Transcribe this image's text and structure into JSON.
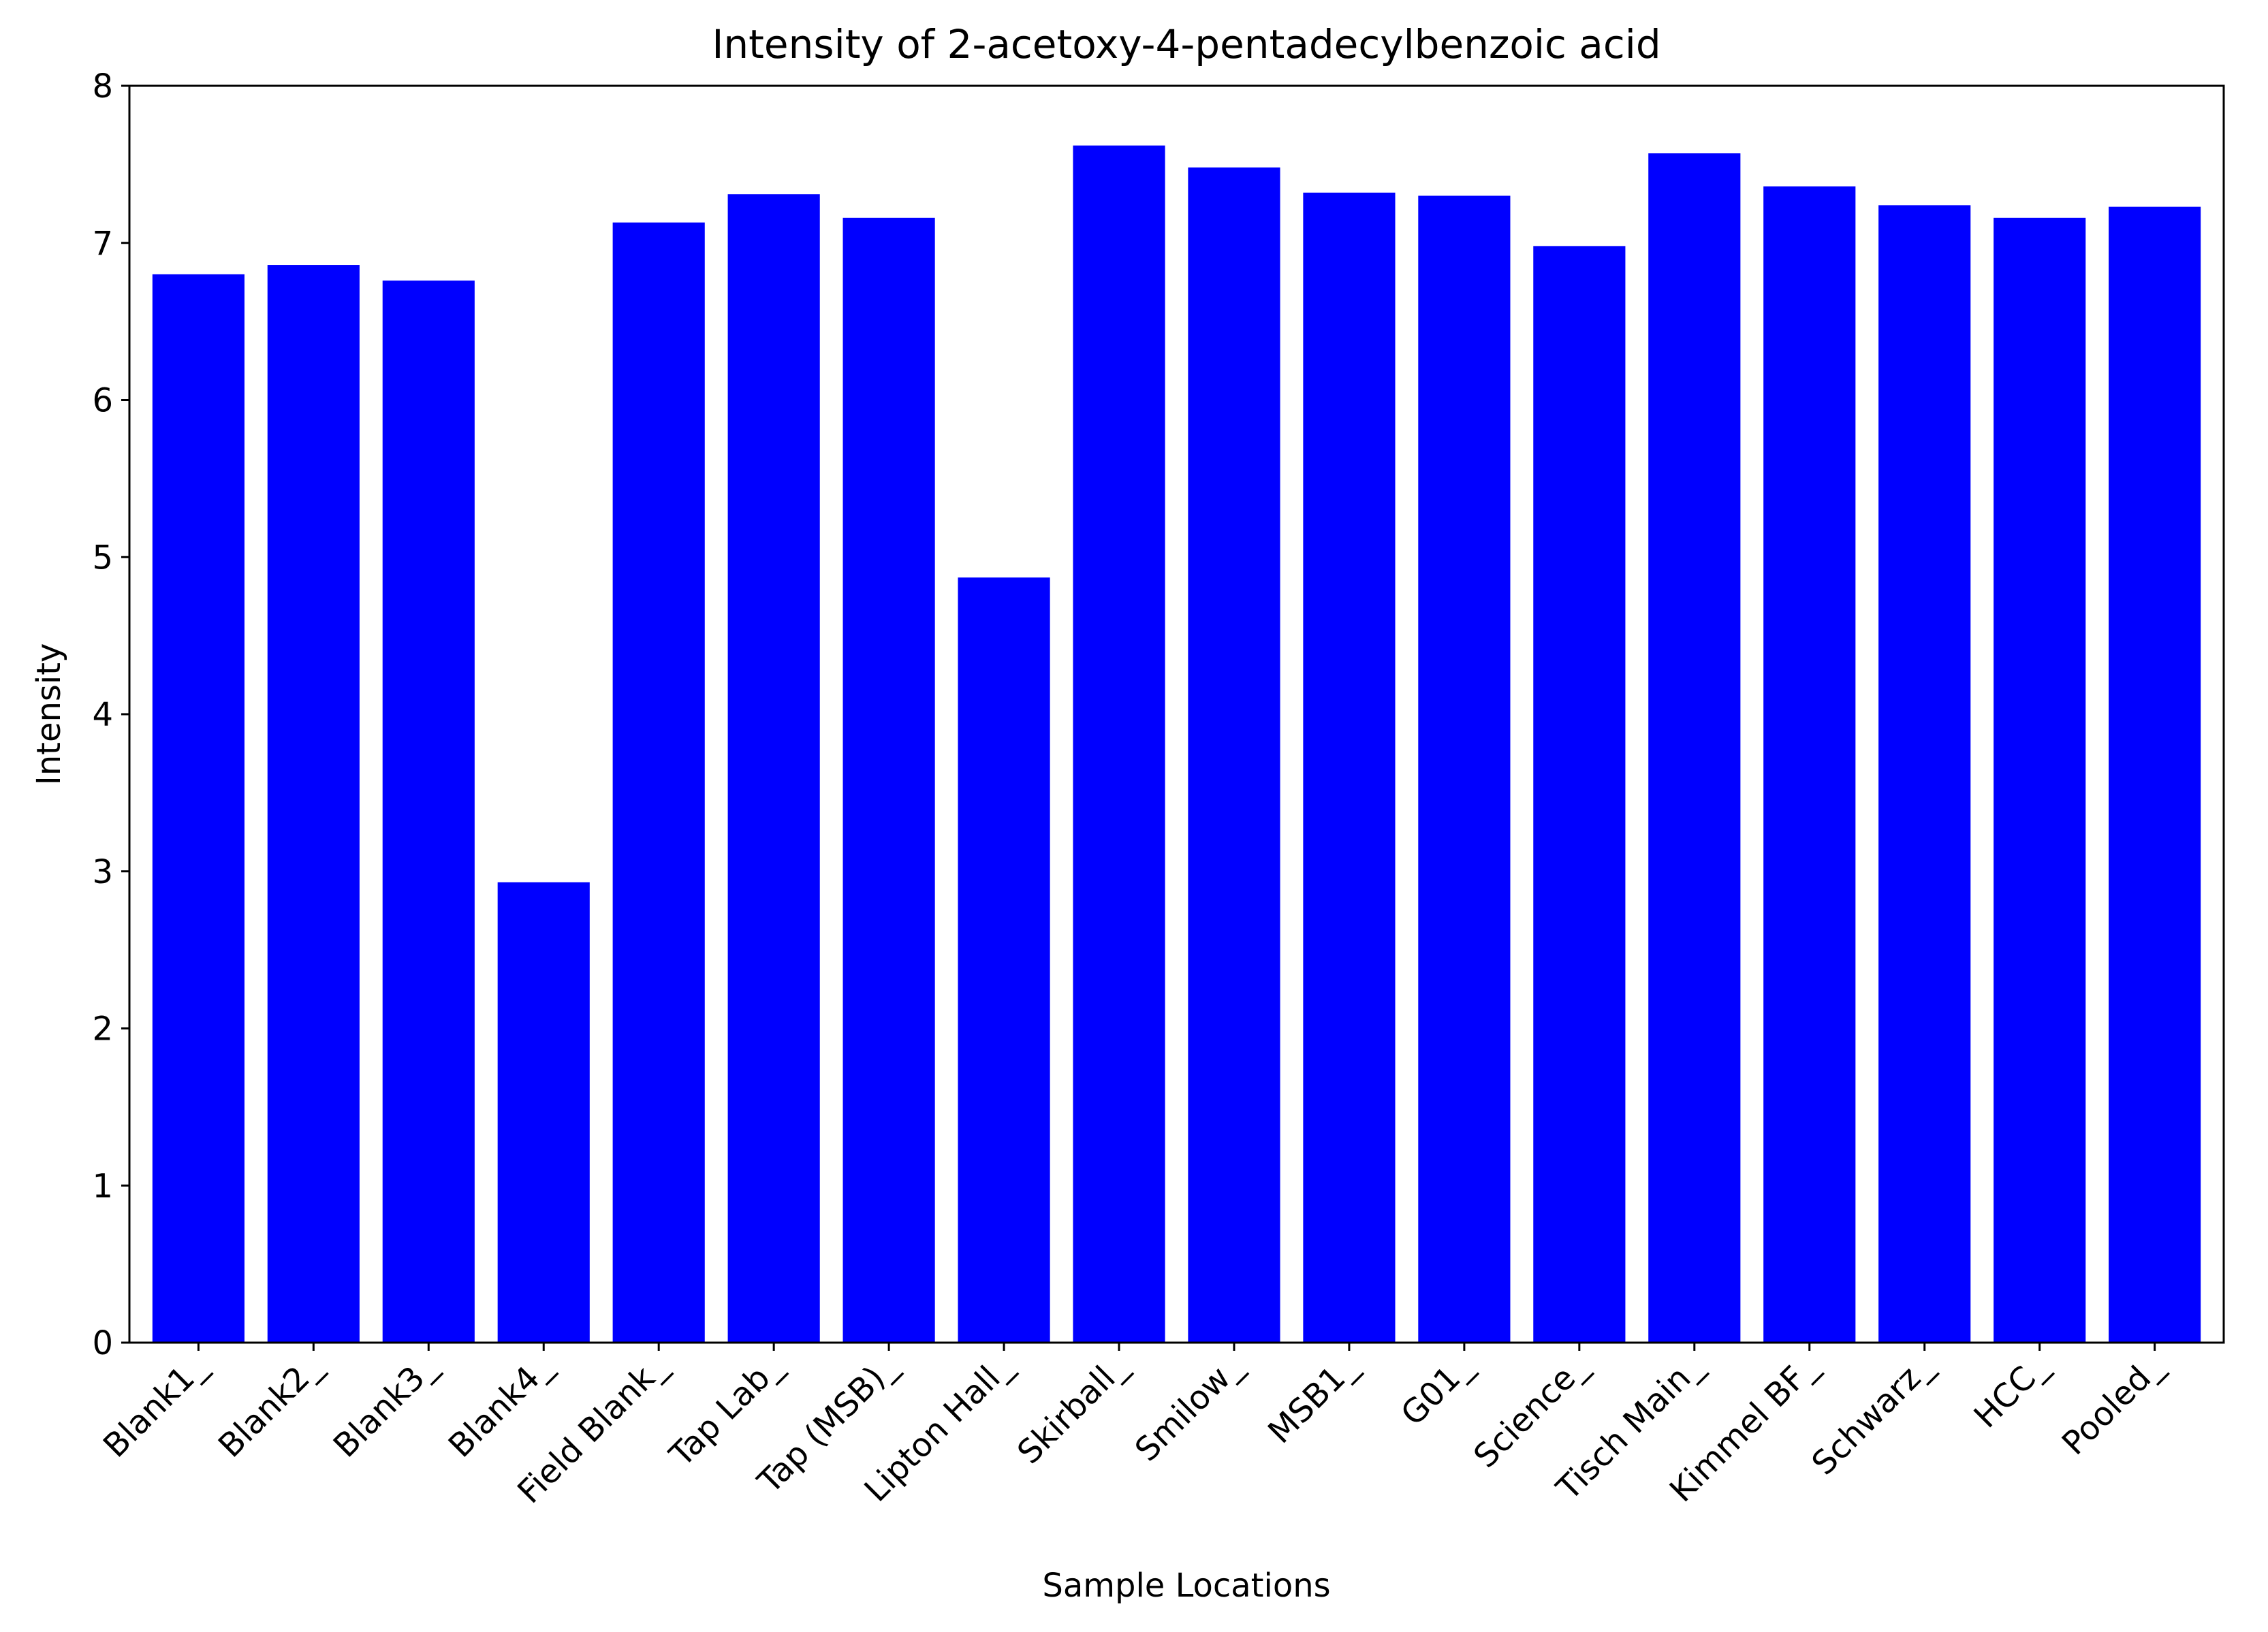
{
  "chart_data": {
    "type": "bar",
    "title": "Intensity of 2-acetoxy-4-pentadecylbenzoic acid",
    "xlabel": "Sample Locations",
    "ylabel": "Intensity",
    "ylim": [
      0,
      8
    ],
    "yticks": [
      "0",
      "1",
      "2",
      "3",
      "4",
      "5",
      "6",
      "7",
      "8"
    ],
    "grid": false,
    "bar_color": "#0000ff",
    "categories": [
      "Blank1_",
      "Blank2_",
      "Blank3_",
      "Blank4_",
      "Field Blank_",
      "Tap Lab_",
      "Tap (MSB)_",
      "Lipton Hall_",
      "Skirball_",
      "Smilow_",
      "MSB1_",
      "G01_",
      "Science_",
      "Tisch Main_",
      "Kimmel BF_",
      "Schwarz_",
      "HCC_",
      "Pooled_"
    ],
    "values": [
      6.8,
      6.86,
      6.76,
      2.93,
      7.13,
      7.31,
      7.16,
      4.87,
      7.62,
      7.48,
      7.32,
      7.3,
      6.98,
      7.57,
      7.36,
      7.24,
      7.16,
      7.23
    ]
  }
}
